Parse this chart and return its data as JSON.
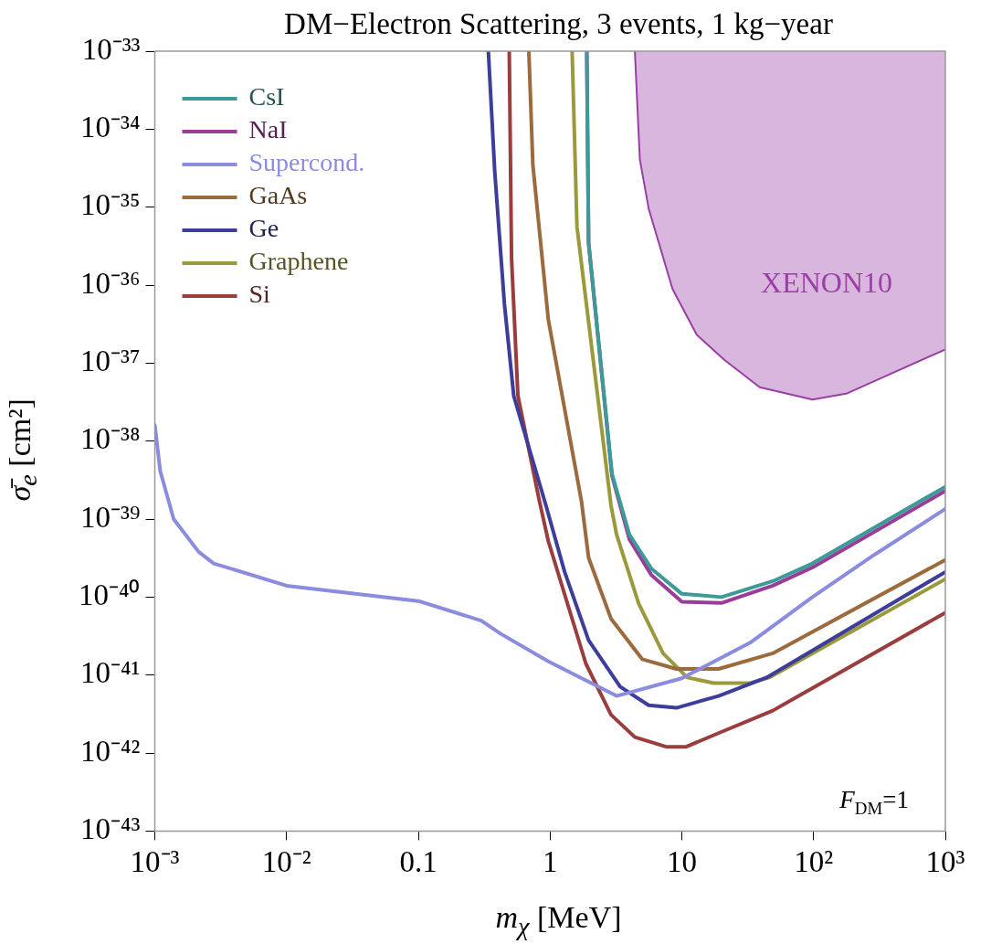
{
  "chart_data": {
    "type": "line",
    "title": "DM−Electron Scattering, 3 events, 1 kg−year",
    "xlabel": "m$_{χ}$ [MeV]",
    "ylabel": "σ̄$_{e}$ [cm²]",
    "log": "xy",
    "grid": false,
    "legend": "top left",
    "marker": "none",
    "line_style": "solid",
    "xlim": [
      0.001,
      1000
    ],
    "xticks": [
      {
        "value": 0.001,
        "label": "10⁻³"
      },
      {
        "value": 0.01,
        "label": "10⁻²"
      },
      0.1,
      1,
      10,
      {
        "value": 100,
        "label": "10²"
      },
      {
        "value": 1000,
        "label": "10³"
      }
    ],
    "ylim": [
      1e-43,
      1e-33
    ],
    "yticks": [
      {
        "value": 1e-43,
        "label": "10⁻⁴³"
      },
      {
        "value": 1e-42,
        "label": "10⁻⁴²"
      },
      {
        "value": 1e-41,
        "label": "10⁻⁴¹"
      },
      {
        "value": 1e-40,
        "label": "10⁻⁴⁰"
      },
      {
        "value": 1e-39,
        "label": "10⁻³⁹"
      },
      {
        "value": 1e-38,
        "label": "10⁻³⁸"
      },
      {
        "value": 1e-37,
        "label": "10⁻³⁷"
      },
      {
        "value": 1e-36,
        "label": "10⁻³⁶"
      },
      {
        "value": 1e-35,
        "label": "10⁻³⁵"
      },
      {
        "value": 1e-34,
        "label": "10⁻³⁴"
      },
      {
        "value": 1e-33,
        "label": "10⁻³³"
      }
    ],
    "series": [
      {
        "name": "CsI",
        "color": "#3d9a96",
        "x": [
          1.9,
          1.96,
          2.95,
          4.0,
          5.9,
          10,
          20,
          49,
          98,
          1000
        ],
        "values": [
          1e-33,
          3.5e-36,
          3.8e-39,
          6.3e-40,
          2.3e-40,
          1.1e-40,
          1e-40,
          1.6e-40,
          2.7e-40,
          2.6e-39
        ]
      },
      {
        "name": "NaI",
        "color": "#9a3d9a",
        "x": [
          1.9,
          1.96,
          2.95,
          4.0,
          5.9,
          10,
          20,
          49,
          98,
          1000
        ],
        "values": [
          1e-33,
          3.5e-36,
          3.6e-39,
          5.5e-40,
          1.9e-40,
          8.7e-41,
          8.4e-41,
          1.4e-40,
          2.4e-40,
          2.3e-39
        ]
      },
      {
        "name": "Supercond.",
        "color": "#8b8be0",
        "x": [
          0.001,
          0.0011,
          0.00139,
          0.00215,
          0.0028,
          0.01,
          0.1,
          0.3,
          0.42,
          0.97,
          3.2,
          10,
          33,
          98,
          290,
          1000
        ],
        "values": [
          1.6e-38,
          4.1e-39,
          1e-39,
          3.8e-40,
          2.7e-40,
          1.4e-40,
          8.9e-41,
          5e-41,
          3.4e-41,
          1.5e-41,
          5.4e-42,
          9.1e-42,
          2.6e-41,
          1e-40,
          3.5e-40,
          1.35e-39
        ]
      },
      {
        "name": "GaAs",
        "color": "#9b6a3d",
        "x": [
          0.69,
          0.74,
          0.97,
          1.73,
          1.96,
          2.9,
          5.0,
          9.1,
          19,
          49,
          1000
        ],
        "values": [
          1e-33,
          3.5e-35,
          3.6e-37,
          1.7e-39,
          3.2e-40,
          5.3e-41,
          1.6e-41,
          1.2e-41,
          1.2e-41,
          1.9e-41,
          3e-40
        ]
      },
      {
        "name": "Ge",
        "color": "#3d3d9a",
        "x": [
          0.34,
          0.38,
          0.45,
          0.53,
          0.93,
          1.29,
          1.96,
          3.4,
          5.6,
          9.1,
          19,
          44,
          1000
        ],
        "values": [
          1e-33,
          2.9e-35,
          5.8e-37,
          3.8e-38,
          1.5e-39,
          2.1e-40,
          2.8e-41,
          7.1e-42,
          4.1e-42,
          3.8e-42,
          5.4e-42,
          9.3e-42,
          2.1e-40
        ]
      },
      {
        "name": "Graphene",
        "color": "#9a9a3d",
        "x": [
          1.47,
          1.6,
          2.9,
          3.2,
          4.7,
          7.2,
          11,
          17.5,
          33,
          46,
          1000
        ],
        "values": [
          1e-33,
          5.6e-36,
          1.5e-39,
          6.3e-40,
          8.3e-41,
          1.9e-41,
          9.3e-42,
          7.9e-42,
          7.9e-42,
          9.3e-42,
          1.7e-40
        ]
      },
      {
        "name": "Si",
        "color": "#9a3d3d",
        "x": [
          0.49,
          0.51,
          0.57,
          0.83,
          0.97,
          1.87,
          2.9,
          4.4,
          7.7,
          10.7,
          19,
          49,
          1000
        ],
        "values": [
          1e-33,
          2.2e-36,
          3.8e-38,
          1.7e-39,
          5.2e-40,
          1.4e-41,
          3.1e-42,
          1.6e-42,
          1.2e-42,
          1.2e-42,
          1.8e-42,
          3.5e-42,
          6.3e-41
        ]
      },
      {
        "name": "XENON10",
        "color": "#9b3fa6",
        "x": [
          4.4,
          4.8,
          5.6,
          8.5,
          13,
          21,
          39,
          98,
          180,
          1000
        ],
        "values": [
          1e-33,
          4.1e-35,
          9.6e-36,
          8.9e-37,
          2.3e-37,
          1.1e-37,
          4.9e-38,
          3.4e-38,
          4.1e-38,
          1.5e-37
        ],
        "lower": [
          1e-33,
          4.1e-35,
          9.6e-36,
          8.9e-37,
          2.3e-37,
          1.1e-37,
          4.9e-38,
          3.4e-38,
          4.1e-38,
          1.5e-37
        ],
        "upper": [
          1e-33,
          1e-33,
          1e-33,
          1e-33,
          1e-33,
          1e-33,
          1e-33,
          1e-33,
          1e-33,
          1e-33
        ]
      }
    ],
    "annotations": [
      "F$_{DM}$=1"
    ]
  }
}
